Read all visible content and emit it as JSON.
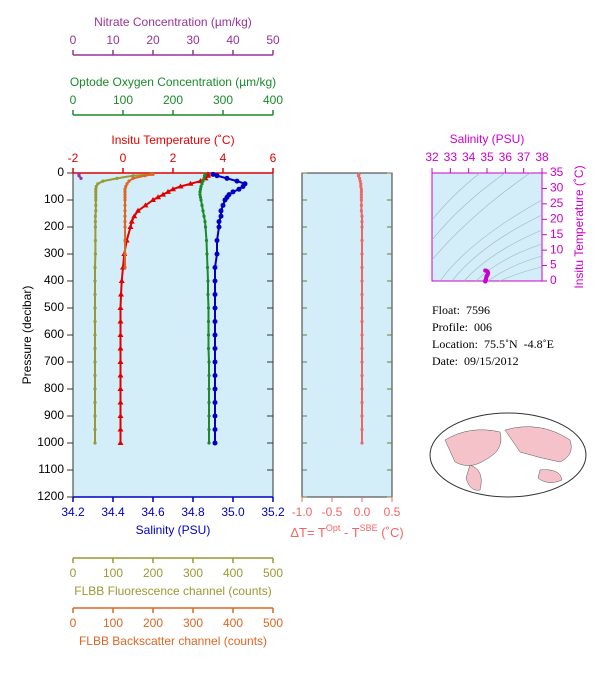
{
  "chart_data": [
    {
      "type": "profile",
      "y_label": "Pressure (decibar)",
      "y": [
        5,
        10,
        20,
        30,
        40,
        50,
        60,
        70,
        80,
        90,
        100,
        120,
        140,
        160,
        180,
        200,
        250,
        300,
        350,
        400,
        450,
        500,
        550,
        600,
        650,
        700,
        750,
        800,
        850,
        900,
        950,
        1000
      ],
      "ylim": [
        0,
        1200
      ],
      "yticks": [
        0,
        100,
        200,
        300,
        400,
        500,
        600,
        700,
        800,
        900,
        1000,
        1100,
        1200
      ],
      "axes": [
        {
          "label": "Insitu Temperature (˚C)",
          "color": "#e00000",
          "position": "top",
          "marker": "triangle",
          "lim": [
            -2,
            6
          ],
          "ticks": [
            -2,
            0,
            2,
            4,
            6
          ],
          "values": [
            3.4,
            3.4,
            3.3,
            3.1,
            2.7,
            2.3,
            2.0,
            1.8,
            1.6,
            1.4,
            1.2,
            0.9,
            0.6,
            0.45,
            0.35,
            0.3,
            0.15,
            0.05,
            0.0,
            -0.05,
            -0.08,
            -0.1,
            -0.1,
            -0.1,
            -0.1,
            -0.1,
            -0.1,
            -0.1,
            -0.1,
            -0.1,
            -0.1,
            -0.1
          ]
        },
        {
          "label": "Optode Oxygen Concentration (µm/kg)",
          "color": "#1a8a2a",
          "position": "top",
          "marker": "dot",
          "lim": [
            0,
            400
          ],
          "ticks": [
            0,
            100,
            200,
            300,
            400
          ],
          "values": [
            265,
            263,
            262,
            260,
            258,
            256,
            255,
            254,
            254,
            255,
            256,
            258,
            260,
            262,
            264,
            265,
            267,
            268,
            269,
            270,
            270,
            271,
            271,
            271,
            271,
            272,
            272,
            272,
            272,
            272,
            272,
            272
          ]
        },
        {
          "label": "Nitrate Concentration (µm/kg)",
          "color": "#993399",
          "position": "top",
          "marker": "dot",
          "lim": [
            0,
            50
          ],
          "ticks": [
            0,
            10,
            20,
            30,
            40,
            50
          ],
          "values": [
            1.5,
            1.5,
            2,
            null,
            null,
            null,
            null,
            null,
            null,
            null,
            null,
            null,
            null,
            null,
            null,
            null,
            null,
            null,
            null,
            null,
            null,
            null,
            null,
            null,
            null,
            null,
            null,
            null,
            null,
            null,
            null,
            null
          ]
        },
        {
          "label": "Salinity (PSU)",
          "color": "#0000c0",
          "position": "bottom",
          "marker": "circle",
          "lim": [
            34.2,
            35.2
          ],
          "ticks": [
            34.2,
            34.4,
            34.6,
            34.8,
            {
              "value": 35,
              "label": "35.0"
            },
            35.2
          ],
          "values": [
            34.9,
            34.92,
            34.97,
            35.02,
            35.06,
            35.05,
            35.03,
            35.0,
            34.98,
            34.97,
            34.96,
            34.95,
            34.94,
            34.94,
            34.93,
            34.93,
            34.92,
            34.92,
            34.91,
            34.91,
            34.91,
            34.91,
            34.91,
            34.91,
            34.91,
            34.91,
            34.91,
            34.91,
            34.91,
            34.91,
            34.91,
            34.91
          ]
        },
        {
          "label": "FLBB Fluorescence channel (counts)",
          "color": "#999933",
          "position": "bottom",
          "marker": "dot",
          "lim": [
            0,
            500
          ],
          "ticks": [
            0,
            100,
            200,
            300,
            400,
            500
          ],
          "values": [
            195,
            150,
            110,
            75,
            62,
            58,
            57,
            57,
            57,
            57,
            57,
            57,
            57,
            56,
            56,
            56,
            56,
            56,
            55,
            55,
            55,
            55,
            55,
            55,
            55,
            55,
            55,
            55,
            55,
            55,
            55,
            55
          ]
        },
        {
          "label": "FLBB Backscatter channel (counts)",
          "color": "#dd6622",
          "position": "bottom",
          "marker": "dot",
          "lim": [
            0,
            500
          ],
          "ticks": [
            0,
            100,
            200,
            300,
            400,
            500
          ],
          "values": [
            200,
            180,
            150,
            140,
            135,
            132,
            130,
            130,
            130,
            130,
            130,
            130,
            130,
            130,
            130,
            130,
            130,
            130,
            130,
            null,
            null,
            null,
            null,
            null,
            null,
            null,
            null,
            null,
            null,
            null,
            null,
            null
          ]
        }
      ]
    },
    {
      "type": "delta",
      "label_parts": [
        "ΔT= T",
        "Opt",
        " - T",
        "SBE",
        " (˚C)"
      ],
      "color": "#f06666",
      "xlim": [
        -1,
        0.5
      ],
      "xticks": [
        {
          "value": -1,
          "label": "-1.0"
        },
        -0.5,
        {
          "value": 0,
          "label": "0.0"
        },
        0.5
      ],
      "values": [
        -0.05,
        -0.06,
        -0.04,
        -0.03,
        -0.02,
        -0.02,
        -0.01,
        -0.01,
        -0.01,
        -0.01,
        -0.01,
        -0.01,
        -0.01,
        0.0,
        0.0,
        0.0,
        0.0,
        0.0,
        0.0,
        0.0,
        0.0,
        0.0,
        0.0,
        0.0,
        0.0,
        0.0,
        0.0,
        0.0,
        0.0,
        0.0,
        0.0,
        0.0
      ]
    },
    {
      "type": "ts",
      "x_label": "Salinity (PSU)",
      "y_label": "Insitu Temperature (˚C)",
      "color": "#cc00cc",
      "xlim": [
        32,
        38
      ],
      "xticks": [
        32,
        33,
        34,
        35,
        36,
        37,
        38
      ],
      "ylim": [
        0,
        35
      ],
      "yticks": [
        0,
        5,
        10,
        15,
        20,
        25,
        30,
        35
      ]
    }
  ],
  "info": [
    "Float:  7596",
    "Profile:  006",
    "Location:  75.5˚N  -4.8˚E",
    "Date:  09/15/2012"
  ]
}
